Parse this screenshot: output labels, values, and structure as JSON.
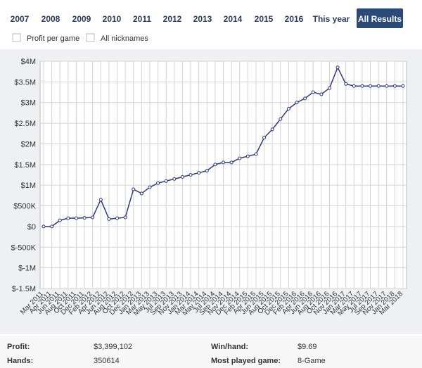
{
  "tabs": [
    "2007",
    "2008",
    "2009",
    "2010",
    "2011",
    "2012",
    "2013",
    "2014",
    "2015",
    "2016",
    "This year",
    "All Results"
  ],
  "active_tab": "All Results",
  "checkboxes": [
    "Profit per game",
    "All nicknames"
  ],
  "chart_data": {
    "type": "line",
    "categories": [
      "Mar 2011",
      "Apr 2011",
      "Jun 2011",
      "Aug 2011",
      "Oct 2011",
      "Dec 2011",
      "Feb 2012",
      "Apr 2012",
      "Jun 2012",
      "Aug 2012",
      "Oct 2012",
      "Dec 2012",
      "Jan 2013",
      "Mar 2013",
      "May 2013",
      "Jul 2013",
      "Sep 2013",
      "Nov 2013",
      "Jan 2014",
      "Mar 2014",
      "May 2014",
      "Jul 2014",
      "Sep 2014",
      "Nov 2014",
      "Dec 2014",
      "Feb 2015",
      "Apr 2015",
      "Jun 2015",
      "Aug 2015",
      "Oct 2015",
      "Dec 2015",
      "Feb 2016",
      "Apr 2016",
      "Jun 2016",
      "Aug 2016",
      "Oct 2016",
      "Nov 2016",
      "Jan 2017",
      "Mar 2017",
      "May 2017",
      "Jul 2017",
      "Sep 2017",
      "Nov 2017",
      "Jan 2018",
      "Mar 2018"
    ],
    "values": [
      0,
      0,
      150000,
      200000,
      200000,
      210000,
      220000,
      650000,
      180000,
      200000,
      220000,
      900000,
      800000,
      950000,
      1050000,
      1100000,
      1150000,
      1200000,
      1250000,
      1300000,
      1350000,
      1500000,
      1550000,
      1550000,
      1650000,
      1700000,
      1750000,
      2150000,
      2350000,
      2600000,
      2850000,
      3000000,
      3100000,
      3250000,
      3200000,
      3350000,
      3850000,
      3450000,
      3400000,
      3400000,
      3400000,
      3400000,
      3400000,
      3400000,
      3400000
    ],
    "color": "#2e3a7a",
    "ylim": [
      -1500000,
      4000000
    ],
    "yticks": [
      {
        "value": -1500000,
        "label": "$-1.5M"
      },
      {
        "value": -1000000,
        "label": "$-1M"
      },
      {
        "value": -500000,
        "label": "$-500K"
      },
      {
        "value": 0,
        "label": "$0"
      },
      {
        "value": 500000,
        "label": "$500K"
      },
      {
        "value": 1000000,
        "label": "$1M"
      },
      {
        "value": 1500000,
        "label": "$1.5M"
      },
      {
        "value": 2000000,
        "label": "$2M"
      },
      {
        "value": 2500000,
        "label": "$2.5M"
      },
      {
        "value": 3000000,
        "label": "$3M"
      },
      {
        "value": 3500000,
        "label": "$3.5M"
      },
      {
        "value": 4000000,
        "label": "$4M"
      }
    ],
    "grid": true
  },
  "stats": [
    {
      "label": "Profit:",
      "value": "$3,399,102"
    },
    {
      "label": "Hands:",
      "value": 350614
    },
    {
      "label": "Win/hand:",
      "value": "$9.69"
    },
    {
      "label": "Most played game:",
      "value": "8-Game"
    }
  ]
}
